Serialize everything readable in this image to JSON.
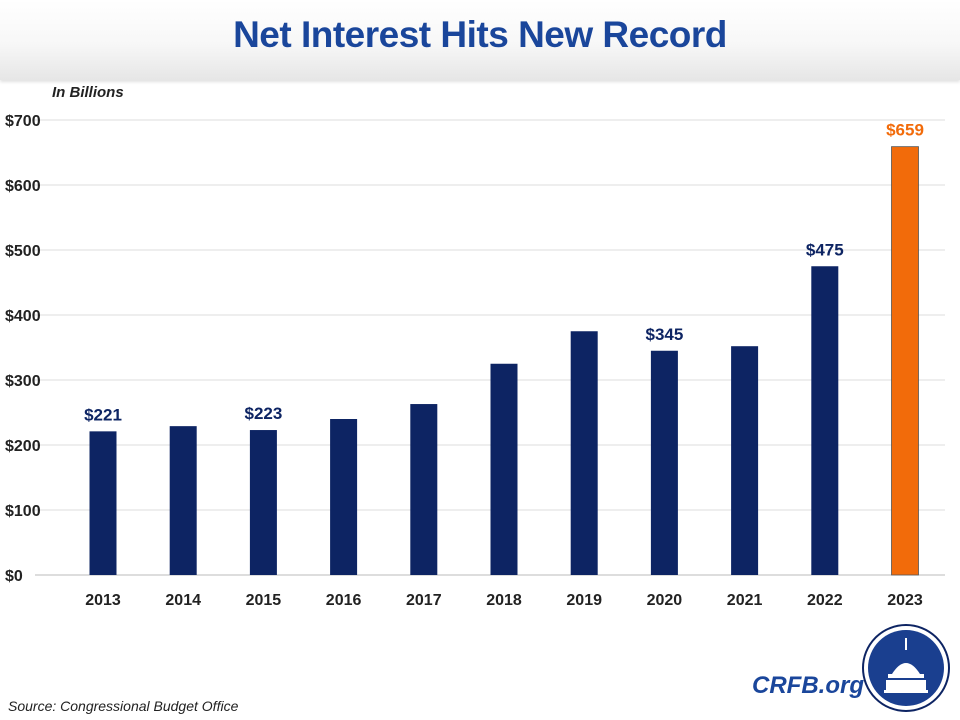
{
  "title": "Net Interest Hits New Record",
  "source": "Source: Congressional Budget Office",
  "brand": "CRFB.org",
  "logo_icon": "capitol-dome-seal-icon",
  "colors": {
    "bar": "#0d2463",
    "highlight": "#f26b0a",
    "title": "#1a469b",
    "label": "#0d2463"
  },
  "chart_data": {
    "type": "bar",
    "title": "Net Interest Hits New Record",
    "ylabel": "In Billions",
    "xlabel": "",
    "categories": [
      "2013",
      "2014",
      "2015",
      "2016",
      "2017",
      "2018",
      "2019",
      "2020",
      "2021",
      "2022",
      "2023"
    ],
    "values": [
      221,
      229,
      223,
      240,
      263,
      325,
      375,
      345,
      352,
      475,
      659
    ],
    "data_labels": {
      "2013": "$221",
      "2015": "$223",
      "2020": "$345",
      "2022": "$475",
      "2023": "$659"
    },
    "highlight": "2023",
    "ylim": [
      0,
      700
    ],
    "yticks": [
      0,
      100,
      200,
      300,
      400,
      500,
      600,
      700
    ],
    "ytick_labels": [
      "$0",
      "$100",
      "$200",
      "$300",
      "$400",
      "$500",
      "$600",
      "$700"
    ],
    "grid": true,
    "legend": "none"
  }
}
